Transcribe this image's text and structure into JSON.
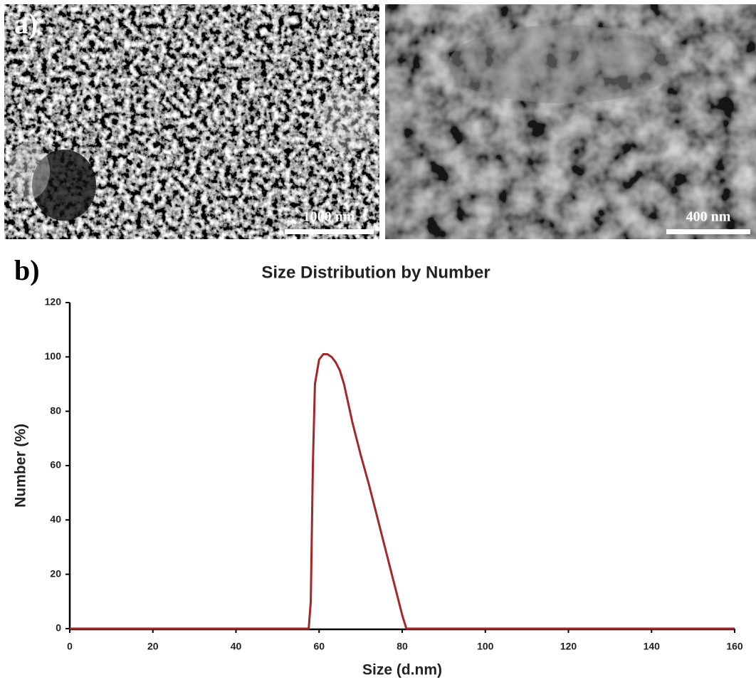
{
  "panels": {
    "a": {
      "label": "a)",
      "scale_bars": [
        "1000 nm",
        "400 nm"
      ]
    },
    "b": {
      "label": "b)"
    }
  },
  "chart_data": {
    "type": "line",
    "title": "Size Distribution by Number",
    "x_label": "Size (d.nm)",
    "y_label": "Number (%)",
    "x": [
      0,
      57.5,
      58,
      58.5,
      59,
      60,
      61,
      62,
      63,
      64,
      65,
      66,
      67,
      68,
      70,
      72,
      74,
      76,
      78,
      80,
      81,
      160
    ],
    "series": [
      {
        "color": "#a3282b",
        "values": [
          0,
          0,
          10,
          60,
          90,
          99,
          101,
          101,
          100,
          98,
          95,
          90,
          83,
          76,
          64,
          53,
          41,
          29,
          17,
          5,
          0,
          0
        ]
      }
    ],
    "xlim": [
      0,
      160
    ],
    "ylim": [
      0,
      120
    ],
    "xticks": [
      0,
      20,
      40,
      60,
      80,
      100,
      120,
      140,
      160
    ],
    "yticks": [
      0,
      20,
      40,
      60,
      80,
      100,
      120
    ],
    "grid": false
  }
}
